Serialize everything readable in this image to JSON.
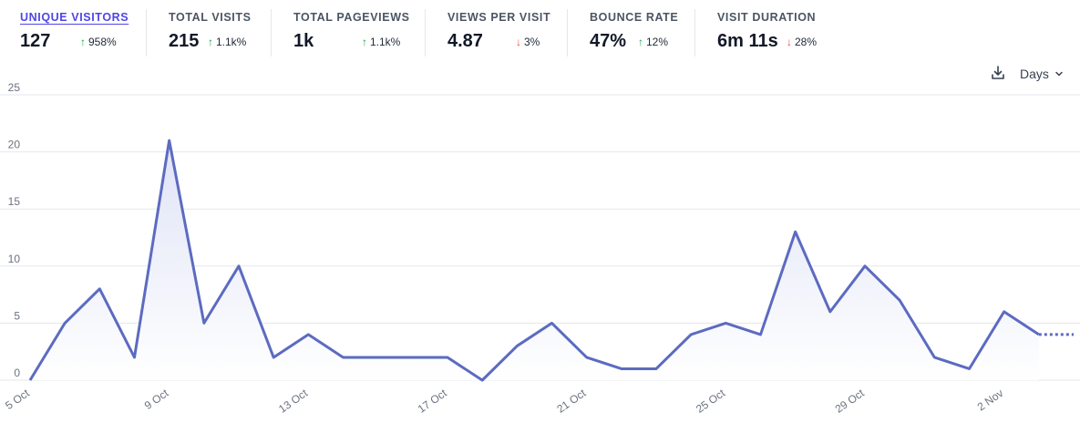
{
  "metrics": [
    {
      "label": "UNIQUE VISITORS",
      "value": "127",
      "change": "958%",
      "direction": "up",
      "active": true
    },
    {
      "label": "TOTAL VISITS",
      "value": "215",
      "change": "1.1k%",
      "direction": "up",
      "active": false
    },
    {
      "label": "TOTAL PAGEVIEWS",
      "value": "1k",
      "change": "1.1k%",
      "direction": "up",
      "active": false
    },
    {
      "label": "VIEWS PER VISIT",
      "value": "4.87",
      "change": "3%",
      "direction": "down",
      "active": false
    },
    {
      "label": "BOUNCE RATE",
      "value": "47%",
      "change": "12%",
      "direction": "up",
      "active": false
    },
    {
      "label": "VISIT DURATION",
      "value": "6m 11s",
      "change": "28%",
      "direction": "down",
      "active": false
    }
  ],
  "controls": {
    "interval_label": "Days",
    "download_icon": "download-icon",
    "dropdown_icon": "chevron-down-icon"
  },
  "colors": {
    "line": "#5c6bc0",
    "fill": "#eef0fa",
    "up": "#16a34a",
    "down": "#ef4444",
    "active": "#4f46e5"
  },
  "chart_data": {
    "type": "line",
    "title": "",
    "xlabel": "",
    "ylabel": "",
    "ylim": [
      0,
      25
    ],
    "yticks": [
      0,
      5,
      10,
      15,
      20,
      25
    ],
    "grid": true,
    "x": [
      "5 Oct",
      "6 Oct",
      "7 Oct",
      "8 Oct",
      "9 Oct",
      "10 Oct",
      "11 Oct",
      "12 Oct",
      "13 Oct",
      "14 Oct",
      "15 Oct",
      "16 Oct",
      "17 Oct",
      "18 Oct",
      "19 Oct",
      "20 Oct",
      "21 Oct",
      "22 Oct",
      "23 Oct",
      "24 Oct",
      "25 Oct",
      "26 Oct",
      "27 Oct",
      "28 Oct",
      "29 Oct",
      "30 Oct",
      "31 Oct",
      "1 Nov",
      "2 Nov",
      "3 Nov",
      "4 Nov"
    ],
    "xtick_labels": [
      "5 Oct",
      "9 Oct",
      "13 Oct",
      "17 Oct",
      "21 Oct",
      "25 Oct",
      "29 Oct",
      "2 Nov"
    ],
    "series": [
      {
        "name": "Unique visitors",
        "values": [
          0,
          5,
          8,
          2,
          21,
          5,
          10,
          2,
          4,
          2,
          2,
          2,
          2,
          0,
          3,
          5,
          2,
          1,
          1,
          4,
          5,
          4,
          13,
          6,
          10,
          7,
          2,
          1,
          6,
          4,
          4
        ],
        "incomplete_from_index": 29
      }
    ]
  }
}
